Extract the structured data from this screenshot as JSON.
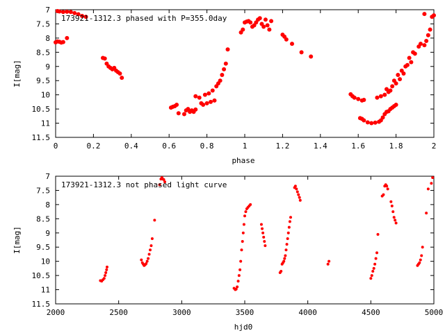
{
  "chart_data": [
    {
      "type": "scatter",
      "title": "173921-1312.3 phased with P=355.0day",
      "xlabel": "phase",
      "ylabel": "I[mag]",
      "xlim": [
        0,
        2
      ],
      "ylim": [
        7,
        11.5
      ],
      "y_inverted": true,
      "grid": false,
      "x_ticks": [
        "0",
        "0.2",
        "0.4",
        "0.6",
        "0.8",
        "1",
        "1.2",
        "1.4",
        "1.6",
        "1.8",
        "2"
      ],
      "y_ticks": [
        "7",
        "7.5",
        "8",
        "8.5",
        "9",
        "9.5",
        "10",
        "10.5",
        "11",
        "11.5"
      ],
      "marker_color": "#ff0000",
      "series": [
        {
          "points": [
            [
              0.0,
              8.15
            ],
            [
              0.01,
              8.12
            ],
            [
              0.02,
              8.13
            ],
            [
              0.03,
              8.16
            ],
            [
              0.04,
              8.14
            ],
            [
              0.06,
              8.0
            ],
            [
              0.01,
              7.05
            ],
            [
              0.02,
              7.06
            ],
            [
              0.04,
              7.08
            ],
            [
              0.06,
              7.07
            ],
            [
              0.08,
              7.08
            ],
            [
              0.1,
              7.12
            ],
            [
              0.12,
              7.16
            ],
            [
              0.14,
              7.22
            ],
            [
              0.16,
              7.25
            ],
            [
              0.25,
              8.7
            ],
            [
              0.26,
              8.72
            ],
            [
              0.27,
              8.9
            ],
            [
              0.28,
              9.0
            ],
            [
              0.29,
              9.05
            ],
            [
              0.3,
              9.1
            ],
            [
              0.31,
              9.05
            ],
            [
              0.32,
              9.15
            ],
            [
              0.33,
              9.2
            ],
            [
              0.34,
              9.25
            ],
            [
              0.35,
              9.4
            ],
            [
              0.61,
              10.45
            ],
            [
              0.62,
              10.42
            ],
            [
              0.63,
              10.4
            ],
            [
              0.64,
              10.35
            ],
            [
              0.65,
              10.65
            ],
            [
              0.68,
              10.68
            ],
            [
              0.69,
              10.55
            ],
            [
              0.7,
              10.5
            ],
            [
              0.71,
              10.6
            ],
            [
              0.72,
              10.55
            ],
            [
              0.73,
              10.6
            ],
            [
              0.74,
              10.52
            ],
            [
              0.74,
              10.05
            ],
            [
              0.76,
              10.1
            ],
            [
              0.77,
              10.3
            ],
            [
              0.78,
              10.35
            ],
            [
              0.79,
              10.0
            ],
            [
              0.8,
              10.3
            ],
            [
              0.81,
              9.95
            ],
            [
              0.82,
              10.25
            ],
            [
              0.83,
              9.85
            ],
            [
              0.84,
              10.2
            ],
            [
              0.85,
              9.7
            ],
            [
              0.86,
              9.6
            ],
            [
              0.87,
              9.5
            ],
            [
              0.88,
              9.3
            ],
            [
              0.89,
              9.1
            ],
            [
              0.9,
              8.9
            ],
            [
              0.91,
              8.4
            ],
            [
              0.98,
              7.8
            ],
            [
              0.99,
              7.7
            ],
            [
              1.0,
              7.45
            ],
            [
              1.01,
              7.42
            ],
            [
              1.02,
              7.4
            ],
            [
              1.03,
              7.45
            ],
            [
              1.04,
              7.6
            ],
            [
              1.05,
              7.55
            ],
            [
              1.06,
              7.45
            ],
            [
              1.07,
              7.35
            ],
            [
              1.08,
              7.3
            ],
            [
              1.09,
              7.5
            ],
            [
              1.1,
              7.6
            ],
            [
              1.11,
              7.35
            ],
            [
              1.12,
              7.55
            ],
            [
              1.13,
              7.7
            ],
            [
              1.14,
              7.4
            ],
            [
              1.2,
              7.88
            ],
            [
              1.21,
              7.95
            ],
            [
              1.22,
              8.05
            ],
            [
              1.25,
              8.2
            ],
            [
              1.3,
              8.5
            ],
            [
              1.35,
              8.65
            ],
            [
              1.56,
              9.98
            ],
            [
              1.57,
              10.05
            ],
            [
              1.58,
              10.1
            ],
            [
              1.6,
              10.15
            ],
            [
              1.62,
              10.2
            ],
            [
              1.63,
              10.18
            ],
            [
              1.61,
              10.82
            ],
            [
              1.62,
              10.85
            ],
            [
              1.63,
              10.9
            ],
            [
              1.65,
              10.97
            ],
            [
              1.67,
              11.0
            ],
            [
              1.69,
              10.98
            ],
            [
              1.71,
              10.95
            ],
            [
              1.72,
              10.9
            ],
            [
              1.73,
              10.8
            ],
            [
              1.74,
              10.68
            ],
            [
              1.75,
              10.6
            ],
            [
              1.76,
              10.58
            ],
            [
              1.77,
              10.5
            ],
            [
              1.78,
              10.45
            ],
            [
              1.79,
              10.4
            ],
            [
              1.8,
              10.35
            ],
            [
              1.7,
              10.1
            ],
            [
              1.72,
              10.05
            ],
            [
              1.74,
              10.0
            ],
            [
              1.75,
              9.8
            ],
            [
              1.76,
              9.9
            ],
            [
              1.77,
              9.85
            ],
            [
              1.78,
              9.7
            ],
            [
              1.79,
              9.5
            ],
            [
              1.8,
              9.6
            ],
            [
              1.81,
              9.3
            ],
            [
              1.82,
              9.45
            ],
            [
              1.83,
              9.15
            ],
            [
              1.84,
              9.25
            ],
            [
              1.85,
              9.0
            ],
            [
              1.86,
              8.95
            ],
            [
              1.87,
              8.7
            ],
            [
              1.88,
              8.85
            ],
            [
              1.89,
              8.5
            ],
            [
              1.9,
              8.55
            ],
            [
              1.92,
              8.3
            ],
            [
              1.93,
              8.2
            ],
            [
              1.95,
              8.25
            ],
            [
              1.96,
              8.1
            ],
            [
              1.97,
              7.9
            ],
            [
              1.98,
              7.7
            ],
            [
              1.99,
              7.25
            ],
            [
              2.0,
              7.2
            ],
            [
              1.95,
              7.15
            ]
          ]
        }
      ]
    },
    {
      "type": "scatter",
      "title": "173921-1312.3 not phased light curve",
      "xlabel": "hjd0",
      "ylabel": "I[mag]",
      "xlim": [
        2000,
        5000
      ],
      "ylim": [
        7,
        11.5
      ],
      "y_inverted": true,
      "grid": false,
      "x_ticks": [
        "2000",
        "2500",
        "3000",
        "3500",
        "4000",
        "4500",
        "5000"
      ],
      "y_ticks": [
        "7",
        "7.5",
        "8",
        "8.5",
        "9",
        "9.5",
        "10",
        "10.5",
        "11",
        "11.5"
      ],
      "marker_color": "#ff0000",
      "series": [
        {
          "points": [
            [
              2355,
              10.68
            ],
            [
              2365,
              10.7
            ],
            [
              2375,
              10.65
            ],
            [
              2385,
              10.6
            ],
            [
              2392,
              10.5
            ],
            [
              2398,
              10.4
            ],
            [
              2404,
              10.3
            ],
            [
              2408,
              10.2
            ],
            [
              2680,
              9.95
            ],
            [
              2688,
              10.05
            ],
            [
              2695,
              10.1
            ],
            [
              2702,
              10.15
            ],
            [
              2710,
              10.12
            ],
            [
              2718,
              10.08
            ],
            [
              2726,
              10.0
            ],
            [
              2734,
              9.9
            ],
            [
              2742,
              9.75
            ],
            [
              2750,
              9.6
            ],
            [
              2758,
              9.45
            ],
            [
              2766,
              9.2
            ],
            [
              2785,
              8.55
            ],
            [
              2825,
              7.3
            ],
            [
              2835,
              7.1
            ],
            [
              2843,
              7.05
            ],
            [
              2850,
              7.1
            ],
            [
              2858,
              7.12
            ],
            [
              2866,
              7.2
            ],
            [
              3415,
              10.95
            ],
            [
              3425,
              11.0
            ],
            [
              3432,
              10.98
            ],
            [
              3440,
              10.9
            ],
            [
              3448,
              10.7
            ],
            [
              3455,
              10.5
            ],
            [
              3462,
              10.3
            ],
            [
              3468,
              10.0
            ],
            [
              3475,
              9.6
            ],
            [
              3482,
              9.3
            ],
            [
              3488,
              9.0
            ],
            [
              3494,
              8.7
            ],
            [
              3500,
              8.4
            ],
            [
              3508,
              8.25
            ],
            [
              3516,
              8.15
            ],
            [
              3525,
              8.1
            ],
            [
              3535,
              8.05
            ],
            [
              3545,
              8.0
            ],
            [
              3632,
              8.7
            ],
            [
              3638,
              8.85
            ],
            [
              3644,
              9.0
            ],
            [
              3650,
              9.15
            ],
            [
              3656,
              9.3
            ],
            [
              3662,
              9.45
            ],
            [
              3780,
              10.4
            ],
            [
              3788,
              10.35
            ],
            [
              3796,
              10.1
            ],
            [
              3803,
              10.05
            ],
            [
              3810,
              10.0
            ],
            [
              3816,
              9.9
            ],
            [
              3822,
              9.8
            ],
            [
              3828,
              9.6
            ],
            [
              3834,
              9.4
            ],
            [
              3840,
              9.2
            ],
            [
              3846,
              9.0
            ],
            [
              3852,
              8.8
            ],
            [
              3858,
              8.6
            ],
            [
              3864,
              8.45
            ],
            [
              3895,
              7.4
            ],
            [
              3902,
              7.35
            ],
            [
              3910,
              7.45
            ],
            [
              3918,
              7.55
            ],
            [
              3926,
              7.65
            ],
            [
              3934,
              7.75
            ],
            [
              3940,
              7.85
            ],
            [
              4160,
              10.1
            ],
            [
              4168,
              10.0
            ],
            [
              4500,
              10.6
            ],
            [
              4508,
              10.5
            ],
            [
              4516,
              10.35
            ],
            [
              4524,
              10.25
            ],
            [
              4532,
              10.1
            ],
            [
              4540,
              9.9
            ],
            [
              4548,
              9.7
            ],
            [
              4556,
              9.05
            ],
            [
              4590,
              7.7
            ],
            [
              4600,
              7.65
            ],
            [
              4610,
              7.35
            ],
            [
              4618,
              7.3
            ],
            [
              4626,
              7.35
            ],
            [
              4634,
              7.45
            ],
            [
              4660,
              7.9
            ],
            [
              4668,
              8.05
            ],
            [
              4676,
              8.25
            ],
            [
              4684,
              8.45
            ],
            [
              4692,
              8.55
            ],
            [
              4700,
              8.65
            ],
            [
              4870,
              10.15
            ],
            [
              4878,
              10.1
            ],
            [
              4886,
              10.05
            ],
            [
              4894,
              9.95
            ],
            [
              4902,
              9.8
            ],
            [
              4910,
              9.5
            ],
            [
              4940,
              8.3
            ],
            [
              4955,
              7.45
            ],
            [
              4980,
              7.25
            ],
            [
              4990,
              7.05
            ]
          ]
        }
      ]
    }
  ]
}
